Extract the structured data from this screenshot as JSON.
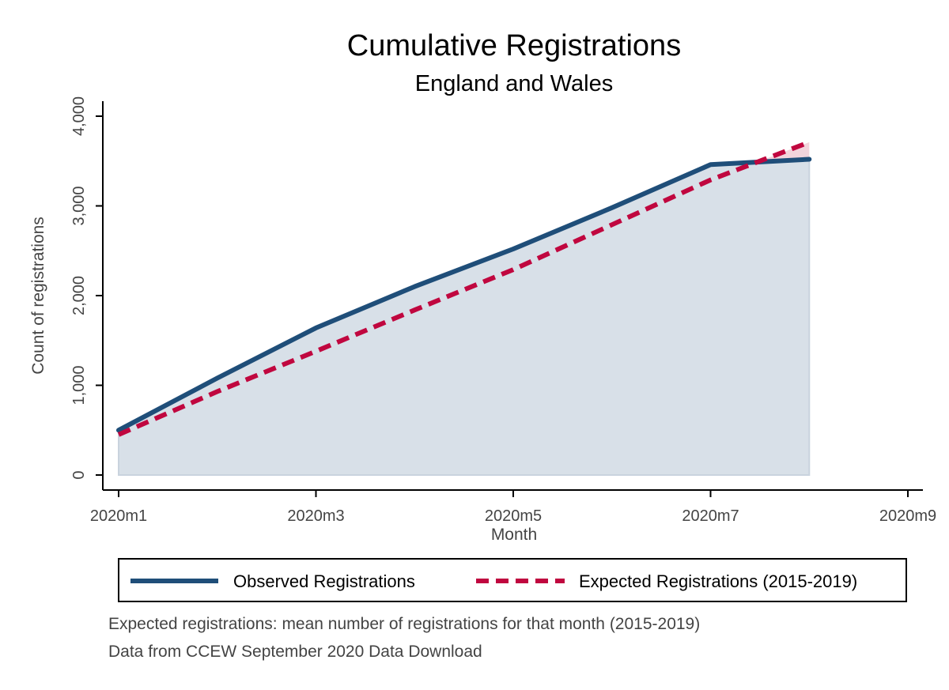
{
  "chart_data": {
    "type": "line",
    "title": "Cumulative Registrations",
    "subtitle": "England and Wales",
    "xlabel": "Month",
    "ylabel": "Count of registrations",
    "x_tick_labels": [
      "2020m1",
      "2020m3",
      "2020m5",
      "2020m7",
      "2020m9"
    ],
    "x_tick_values": [
      1,
      3,
      5,
      7,
      9
    ],
    "y_tick_labels": [
      "0",
      "1,000",
      "2,000",
      "3,000",
      "4,000"
    ],
    "y_tick_values": [
      0,
      1000,
      2000,
      3000,
      4000
    ],
    "xlim": [
      1,
      9
    ],
    "ylim": [
      0,
      4000
    ],
    "x": [
      1,
      2,
      3,
      4,
      5,
      6,
      7,
      8
    ],
    "series": [
      {
        "name": "Observed Registrations",
        "values": [
          500,
          1080,
          1640,
          2100,
          2520,
          2980,
          3460,
          3520
        ],
        "color": "#1f4e79",
        "style": "solid",
        "fill": "#d8e0e8"
      },
      {
        "name": "Expected Registrations (2015-2019)",
        "values": [
          450,
          930,
          1380,
          1840,
          2290,
          2790,
          3290,
          3710
        ],
        "color": "#c0073f",
        "style": "dashed",
        "fill": "#f2d4dc"
      }
    ],
    "grid": false,
    "legend": "bottom",
    "notes": [
      "Expected registrations: mean number of registrations for that month (2015-2019)",
      "Data from CCEW September 2020 Data Download"
    ]
  }
}
